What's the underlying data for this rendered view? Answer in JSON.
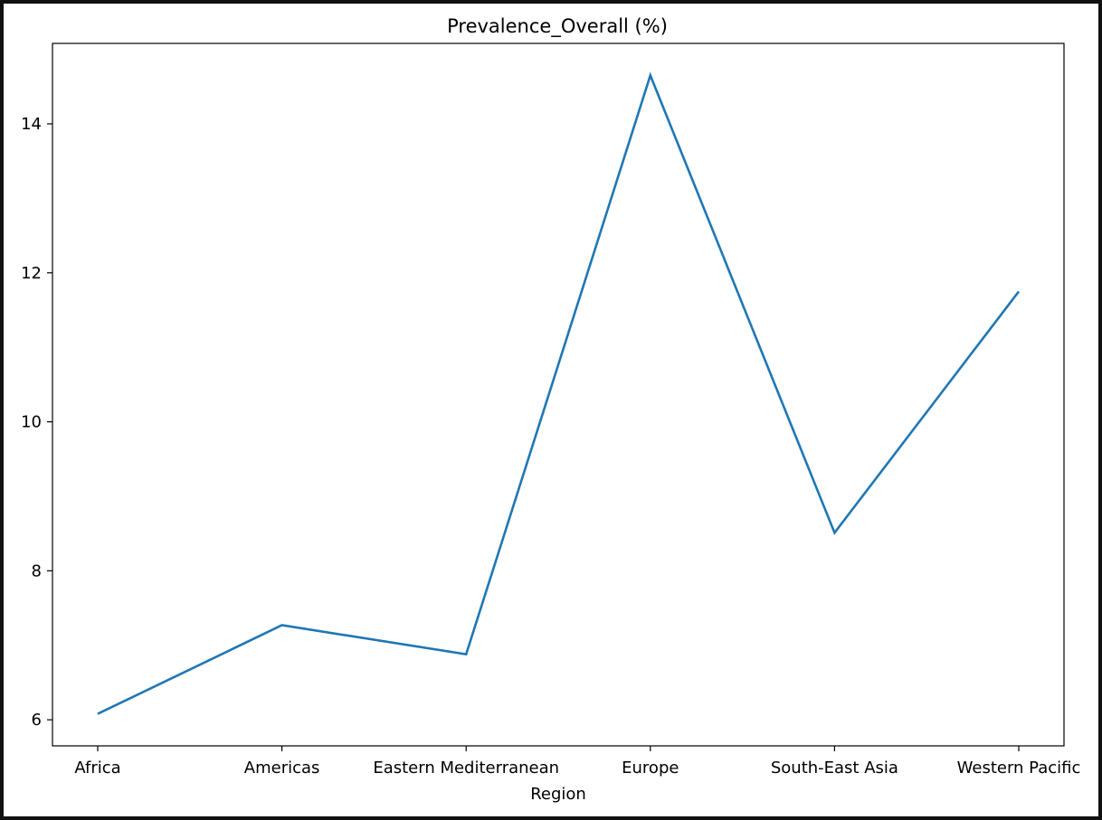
{
  "chart_data": {
    "type": "line",
    "title": "Prevalence_Overall (%)",
    "xlabel": "Region",
    "ylabel": "",
    "categories": [
      "Africa",
      "Americas",
      "Eastern Mediterranean",
      "Europe",
      "South-East Asia",
      "Western Pacific"
    ],
    "series": [
      {
        "values": [
          6.08,
          7.27,
          6.88,
          14.65,
          8.51,
          11.75
        ],
        "color": "#1f77b4"
      }
    ],
    "y_ticks": [
      6,
      8,
      10,
      12,
      14
    ],
    "ylim": [
      5.65,
      15.08
    ],
    "grid": false,
    "legend": "none"
  }
}
